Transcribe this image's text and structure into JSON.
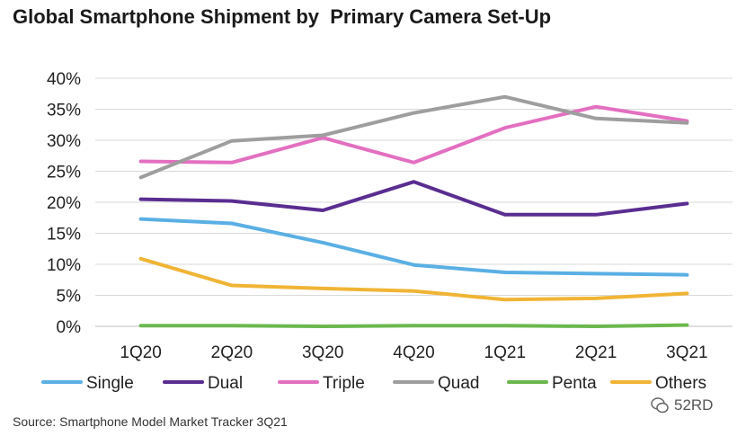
{
  "chart_data": {
    "type": "line",
    "title": "Global Smartphone Shipment by  Primary Camera Set-Up",
    "categories": [
      "1Q20",
      "2Q20",
      "3Q20",
      "4Q20",
      "1Q21",
      "2Q21",
      "3Q21"
    ],
    "yticks": [
      "0%",
      "5%",
      "10%",
      "15%",
      "20%",
      "25%",
      "30%",
      "35%",
      "40%"
    ],
    "ylim": [
      0,
      40
    ],
    "grid": true,
    "legend_position": "bottom",
    "series": [
      {
        "name": "Single",
        "color": "#5aafe4",
        "values": [
          17.3,
          16.6,
          13.5,
          9.9,
          8.7,
          8.5,
          8.3
        ]
      },
      {
        "name": "Dual",
        "color": "#5a2d91",
        "values": [
          20.5,
          20.2,
          18.7,
          23.3,
          18.0,
          18.0,
          19.8
        ]
      },
      {
        "name": "Triple",
        "color": "#e36fc0",
        "values": [
          26.6,
          26.4,
          30.4,
          26.4,
          32.0,
          35.4,
          33.1
        ]
      },
      {
        "name": "Quad",
        "color": "#9e9e9e",
        "values": [
          24.0,
          29.9,
          30.8,
          34.4,
          37.0,
          33.5,
          32.8
        ]
      },
      {
        "name": "Penta",
        "color": "#6bb84e",
        "values": [
          0.1,
          0.1,
          0.0,
          0.1,
          0.1,
          0.0,
          0.2
        ]
      },
      {
        "name": "Others",
        "color": "#f0b435",
        "values": [
          10.9,
          6.6,
          6.1,
          5.7,
          4.3,
          4.5,
          5.3
        ]
      }
    ]
  },
  "source": "Source: Smartphone Model Market Tracker 3Q21",
  "watermark": "52RD"
}
